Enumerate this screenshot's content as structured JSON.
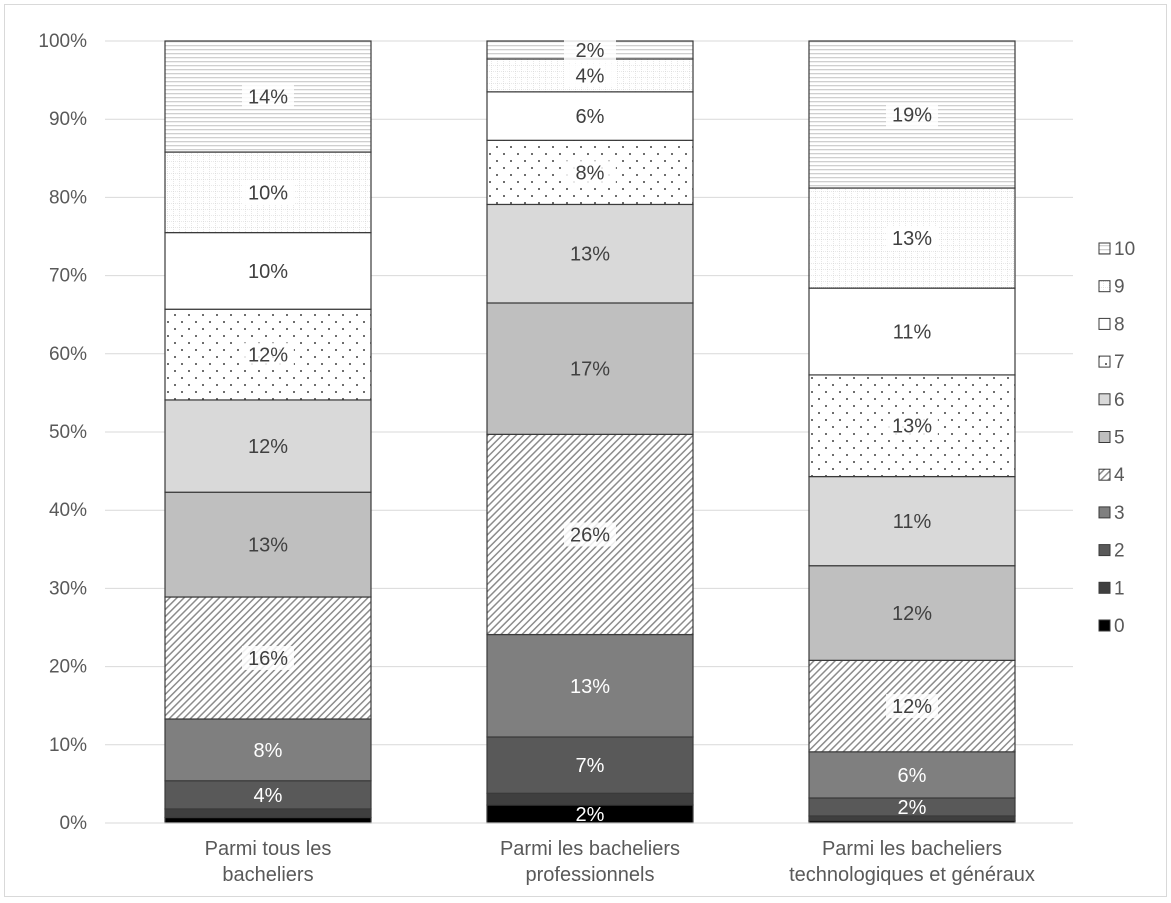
{
  "chart_data": {
    "type": "bar",
    "stacked": true,
    "orientation": "vertical",
    "categories": [
      "Parmi tous les bacheliers",
      "Parmi les bacheliers professionnels",
      "Parmi les bacheliers technologiques et généraux"
    ],
    "series": [
      {
        "name": "0",
        "fill": "#000000",
        "pattern": "solid",
        "values": [
          0.7,
          2.3,
          0.3
        ]
      },
      {
        "name": "1",
        "fill": "#3f3f3f",
        "pattern": "solid",
        "values": [
          1.1,
          1.5,
          0.6
        ]
      },
      {
        "name": "2",
        "fill": "#595959",
        "pattern": "solid",
        "values": [
          3.6,
          7.2,
          2.3
        ]
      },
      {
        "name": "3",
        "fill": "#7f7f7f",
        "pattern": "solid",
        "values": [
          7.9,
          13.1,
          5.9
        ]
      },
      {
        "name": "4",
        "fill": "#ffffff",
        "pattern": "diagonal",
        "values": [
          15.6,
          25.6,
          11.7
        ]
      },
      {
        "name": "5",
        "fill": "#bfbfbf",
        "pattern": "solid",
        "values": [
          13.4,
          16.8,
          12.1
        ]
      },
      {
        "name": "6",
        "fill": "#d9d9d9",
        "pattern": "solid",
        "values": [
          11.8,
          12.6,
          11.4
        ]
      },
      {
        "name": "7",
        "fill": "#ffffff",
        "pattern": "dots",
        "values": [
          11.6,
          8.2,
          13.0
        ]
      },
      {
        "name": "8",
        "fill": "#ffffff",
        "pattern": "solid",
        "values": [
          9.8,
          6.2,
          11.1
        ]
      },
      {
        "name": "9",
        "fill": "#ffffff",
        "pattern": "grid",
        "values": [
          10.3,
          4.2,
          12.8
        ]
      },
      {
        "name": "10",
        "fill": "#ffffff",
        "pattern": "hlines",
        "values": [
          14.2,
          2.3,
          18.8
        ]
      }
    ],
    "data_labels": [
      [
        "",
        "",
        "4%",
        "8%",
        "16%",
        "13%",
        "12%",
        "12%",
        "10%",
        "10%",
        "14%"
      ],
      [
        "2%",
        "",
        "7%",
        "13%",
        "26%",
        "17%",
        "13%",
        "8%",
        "6%",
        "4%",
        "2%"
      ],
      [
        "",
        "",
        "2%",
        "6%",
        "12%",
        "12%",
        "11%",
        "13%",
        "11%",
        "13%",
        "19%"
      ]
    ],
    "y_ticks": [
      "0%",
      "10%",
      "20%",
      "30%",
      "40%",
      "50%",
      "60%",
      "70%",
      "80%",
      "90%",
      "100%"
    ],
    "ylim": [
      0,
      100
    ],
    "grid": true,
    "legend_position": "right",
    "legend_order": [
      "10",
      "9",
      "8",
      "7",
      "6",
      "5",
      "4",
      "3",
      "2",
      "1",
      "0"
    ],
    "category_label_lines": [
      [
        "Parmi tous les",
        "bacheliers"
      ],
      [
        "Parmi les bacheliers",
        "professionnels"
      ],
      [
        "Parmi les bacheliers",
        "technologiques et généraux"
      ]
    ]
  }
}
